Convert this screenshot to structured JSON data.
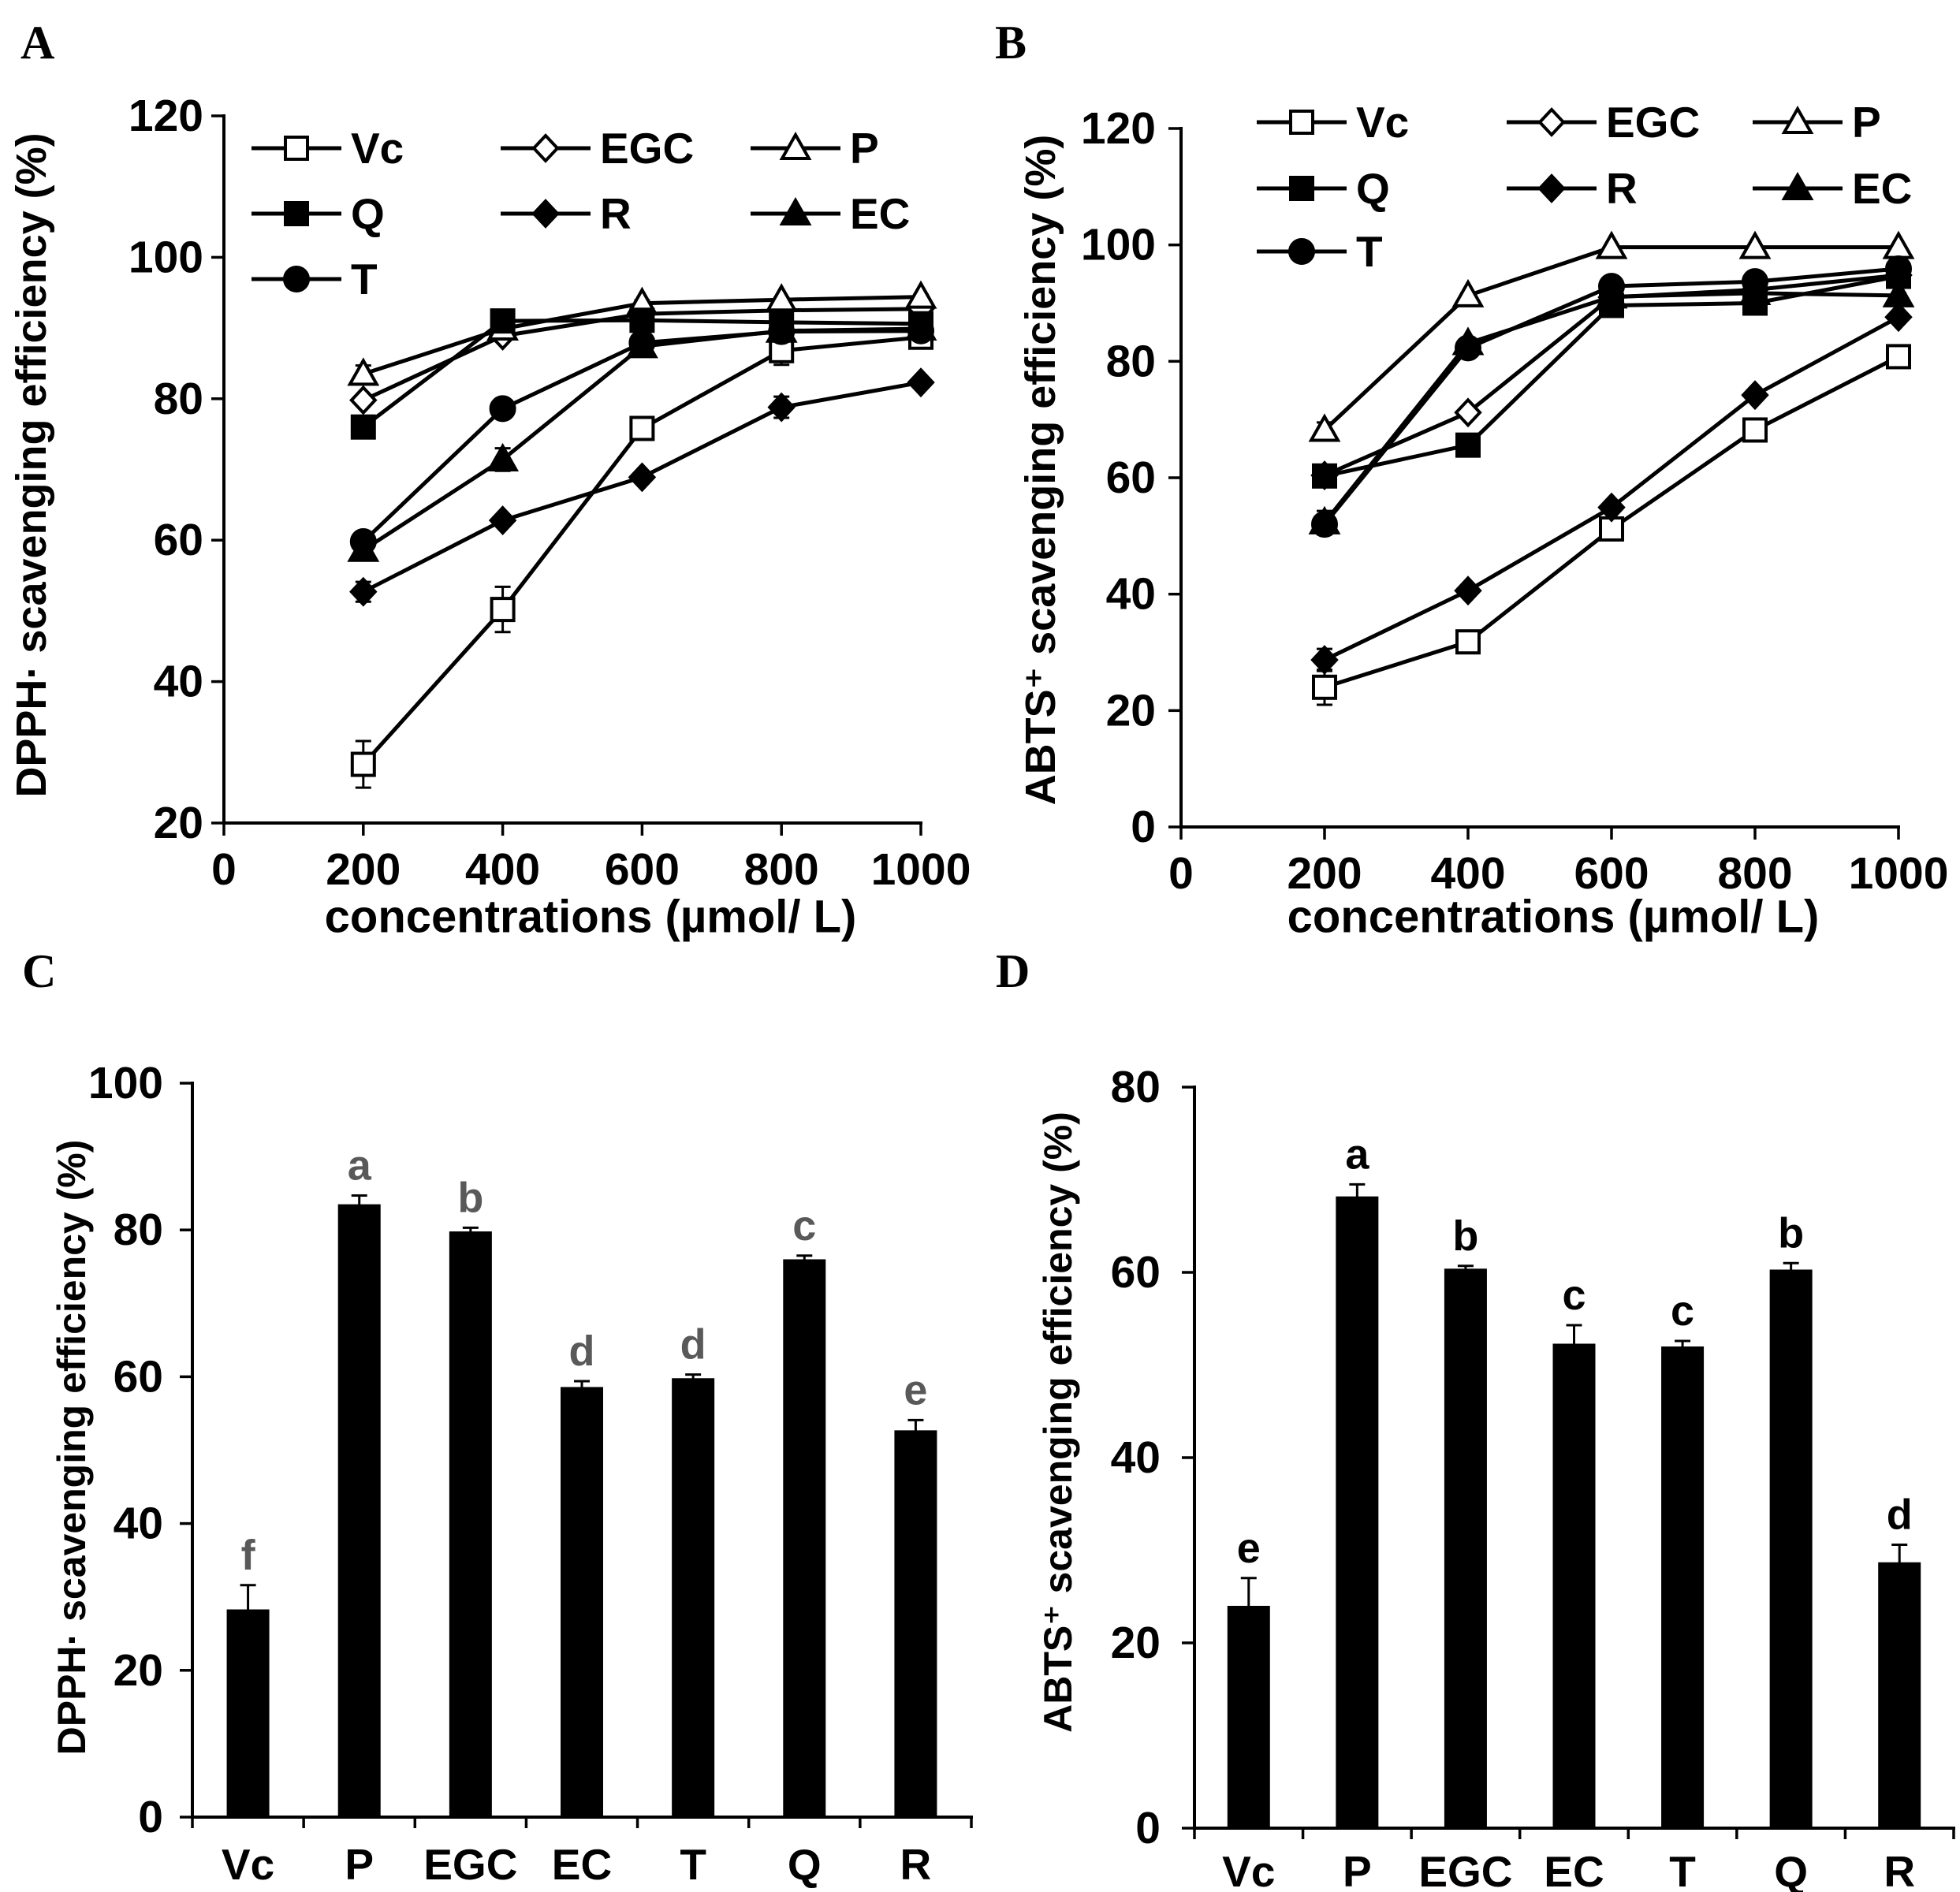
{
  "chart_data": [
    {
      "panel": "A",
      "type": "line",
      "xlabel": "concentrations (µmol/ L)",
      "ylabel": "DPPH· scavenging efficiency (%)",
      "xlim": [
        0,
        1000
      ],
      "ylim": [
        20,
        120
      ],
      "xticks": [
        0,
        200,
        400,
        600,
        800,
        1000
      ],
      "yticks": [
        20,
        40,
        60,
        80,
        100,
        120
      ],
      "grid": false,
      "legend": "top-left",
      "x": [
        200,
        400,
        600,
        800,
        1000
      ],
      "series": [
        {
          "name": "Vc",
          "marker": "square-open",
          "values": [
            28.3,
            50.2,
            75.8,
            86.8,
            88.7
          ],
          "errors": [
            3.3,
            3.2,
            0.8,
            2.0,
            0.8
          ]
        },
        {
          "name": "EGC",
          "marker": "diamond-open",
          "values": [
            79.8,
            88.9,
            92.0,
            92.5,
            92.7
          ],
          "errors": [
            0.5,
            0.5,
            0.3,
            0.4,
            0.3
          ]
        },
        {
          "name": "P",
          "marker": "triangle-open",
          "values": [
            83.5,
            89.9,
            93.5,
            94.0,
            94.4
          ],
          "errors": [
            1.2,
            0.5,
            0.4,
            0.3,
            0.3
          ]
        },
        {
          "name": "Q",
          "marker": "square-filled",
          "values": [
            76.0,
            91.0,
            91.1,
            90.8,
            90.6
          ],
          "errors": [
            0.5,
            0.6,
            0.5,
            0.4,
            0.3
          ]
        },
        {
          "name": "R",
          "marker": "diamond-filled",
          "values": [
            52.7,
            62.8,
            68.9,
            78.8,
            82.3
          ],
          "errors": [
            1.4,
            0.6,
            0.5,
            1.5,
            0.4
          ]
        },
        {
          "name": "EC",
          "marker": "triangle-filled",
          "values": [
            58.6,
            71.4,
            87.4,
            89.6,
            89.9
          ],
          "errors": [
            0.8,
            1.6,
            0.6,
            0.5,
            0.4
          ]
        },
        {
          "name": "T",
          "marker": "circle-filled",
          "values": [
            59.8,
            78.6,
            87.9,
            89.5,
            89.6
          ],
          "errors": [
            0.5,
            0.6,
            0.5,
            0.5,
            0.4
          ]
        }
      ]
    },
    {
      "panel": "B",
      "type": "line",
      "xlabel": "concentrations (µmol/ L)",
      "ylabel": "ABTS⁺ scavenging efficiency (%)",
      "xlim": [
        0,
        1000
      ],
      "ylim": [
        0,
        120
      ],
      "xticks": [
        0,
        200,
        400,
        600,
        800,
        1000
      ],
      "yticks": [
        0,
        20,
        40,
        60,
        80,
        100,
        120
      ],
      "grid": false,
      "legend": "top-left",
      "x": [
        200,
        400,
        600,
        800,
        1000
      ],
      "series": [
        {
          "name": "Vc",
          "marker": "square-open",
          "values": [
            24.0,
            31.8,
            51.2,
            68.2,
            80.8
          ],
          "errors": [
            3.0,
            0.8,
            1.2,
            0.8,
            0.8
          ]
        },
        {
          "name": "EGC",
          "marker": "diamond-open",
          "values": [
            60.4,
            71.2,
            91.0,
            92.3,
            94.8
          ],
          "errors": [
            0.3,
            0.6,
            0.5,
            0.4,
            0.4
          ]
        },
        {
          "name": "P",
          "marker": "triangle-open",
          "values": [
            68.2,
            91.3,
            99.6,
            99.6,
            99.6
          ],
          "errors": [
            1.3,
            0.4,
            0.2,
            0.2,
            0.2
          ]
        },
        {
          "name": "Q",
          "marker": "square-filled",
          "values": [
            60.3,
            65.6,
            89.6,
            90.0,
            94.6
          ],
          "errors": [
            0.7,
            0.5,
            0.4,
            0.5,
            0.4
          ]
        },
        {
          "name": "R",
          "marker": "diamond-filled",
          "values": [
            28.7,
            40.6,
            54.9,
            74.2,
            87.6
          ],
          "errors": [
            1.9,
            0.6,
            0.8,
            0.6,
            0.5
          ]
        },
        {
          "name": "EC",
          "marker": "triangle-filled",
          "values": [
            52.3,
            83.1,
            91.1,
            91.7,
            91.3
          ],
          "errors": [
            2.0,
            0.6,
            0.5,
            0.5,
            0.4
          ]
        },
        {
          "name": "T",
          "marker": "circle-filled",
          "values": [
            52.0,
            82.3,
            92.9,
            93.7,
            95.9
          ],
          "errors": [
            0.6,
            0.6,
            0.4,
            0.4,
            0.4
          ]
        }
      ]
    },
    {
      "panel": "C",
      "type": "bar",
      "xlabel": "",
      "ylabel": "DPPH· scavenging efficiency (%)",
      "ylim": [
        0,
        100
      ],
      "yticks": [
        0,
        20,
        40,
        60,
        80,
        100
      ],
      "grid": false,
      "categories": [
        "Vc",
        "P",
        "EGC",
        "EC",
        "T",
        "Q",
        "R"
      ],
      "values": [
        28.3,
        83.5,
        79.8,
        58.6,
        59.8,
        76.0,
        52.7
      ],
      "errors": [
        3.3,
        1.2,
        0.5,
        0.8,
        0.5,
        0.5,
        1.4
      ],
      "significance_letters": [
        "f",
        "a",
        "b",
        "d",
        "d",
        "c",
        "e"
      ],
      "bar_color": "#000000",
      "letter_color": "#595959"
    },
    {
      "panel": "D",
      "type": "bar",
      "xlabel": "",
      "ylabel": "ABTS⁺ scavenging efficiency (%)",
      "ylim": [
        0,
        80
      ],
      "yticks": [
        0,
        20,
        40,
        60,
        80
      ],
      "grid": false,
      "categories": [
        "Vc",
        "P",
        "EGC",
        "EC",
        "T",
        "Q",
        "R"
      ],
      "values": [
        24.0,
        68.2,
        60.4,
        52.3,
        52.0,
        60.3,
        28.7
      ],
      "errors": [
        3.0,
        1.3,
        0.3,
        2.0,
        0.6,
        0.7,
        1.9
      ],
      "significance_letters": [
        "e",
        "a",
        "b",
        "c",
        "c",
        "b",
        "d"
      ],
      "bar_color": "#000000",
      "letter_color": "#000000"
    }
  ]
}
